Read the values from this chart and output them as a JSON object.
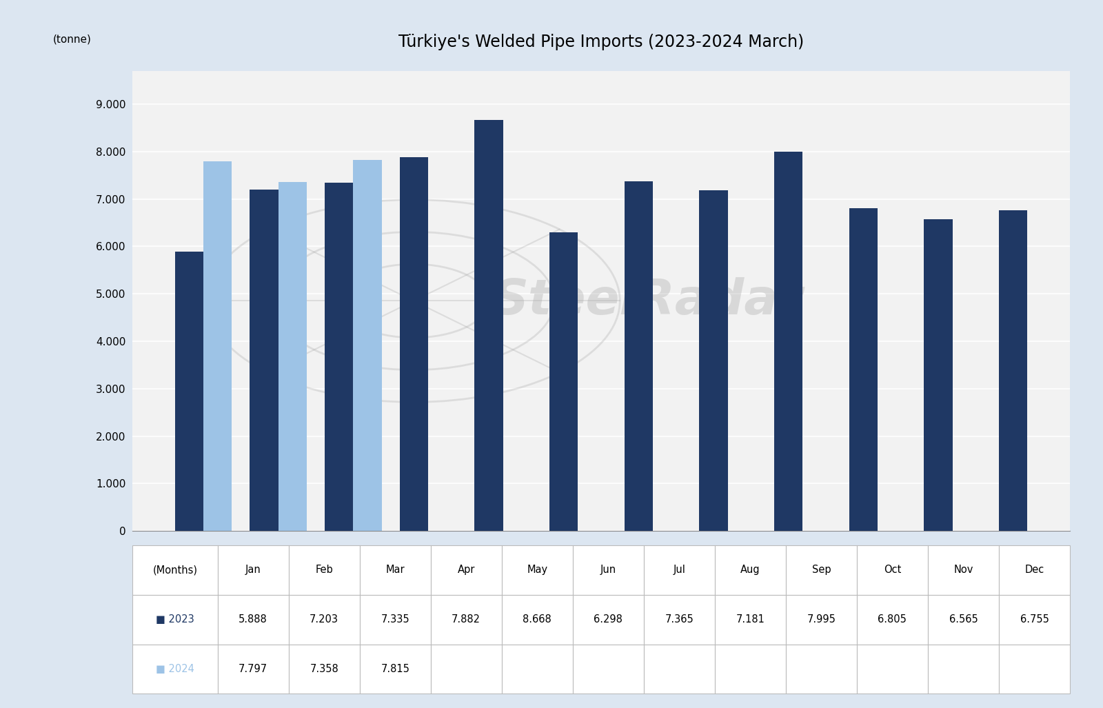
{
  "title": "Türkiye's Welded Pipe Imports (2023-2024 March)",
  "ylabel": "(tonne)",
  "xlabel": "(Months)",
  "months": [
    "Jan",
    "Feb",
    "Mar",
    "Apr",
    "May",
    "Jun",
    "Jul",
    "Aug",
    "Sep",
    "Oct",
    "Nov",
    "Dec"
  ],
  "data_2023": [
    5888,
    7203,
    7335,
    7882,
    8668,
    6298,
    7365,
    7181,
    7995,
    6805,
    6565,
    6755
  ],
  "data_2024": [
    7797,
    7358,
    7815
  ],
  "labels_2023": [
    "5.888",
    "7.203",
    "7.335",
    "7.882",
    "8.668",
    "6.298",
    "7.365",
    "7.181",
    "7.995",
    "6.805",
    "6.565",
    "6.755"
  ],
  "labels_2024": [
    "7.797",
    "7.358",
    "7.815"
  ],
  "color_2023": "#1f3864",
  "color_2024": "#9dc3e6",
  "background_color": "#dce6f1",
  "chart_bg": "#f2f2f2",
  "yticks": [
    0,
    1000,
    2000,
    3000,
    4000,
    5000,
    6000,
    7000,
    8000,
    9000
  ],
  "ylim": [
    0,
    9700
  ],
  "bar_width": 0.38,
  "watermark_text": "SteelRadar"
}
